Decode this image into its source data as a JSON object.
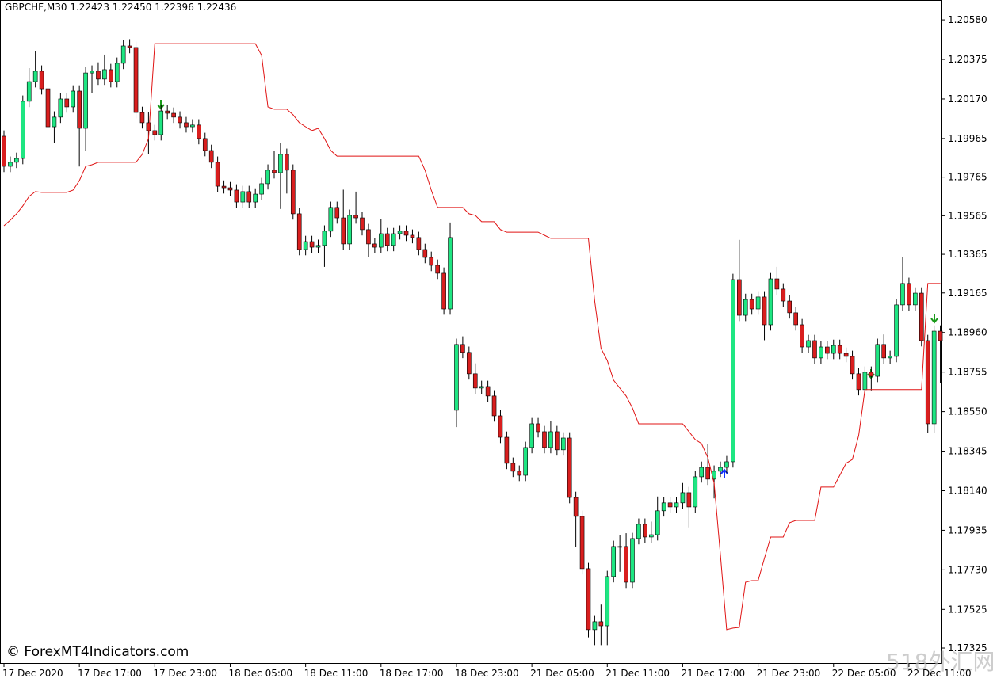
{
  "chart_data": {
    "type": "candlestick",
    "title": "GBPCHF,M30  1.22423 1.22450 1.22396 1.22436",
    "watermark": "© ForexMT4Indicators.com",
    "corner_watermark": "518外汇网",
    "up_color": "#1ee682",
    "down_color": "#d91e1e",
    "categories": [
      "17 Dec 2020",
      null,
      null,
      null,
      null,
      null,
      null,
      null,
      null,
      null,
      null,
      null,
      "17 Dec 17:00",
      null,
      null,
      null,
      null,
      null,
      null,
      null,
      null,
      null,
      null,
      null,
      "17 Dec 23:00",
      null,
      null,
      null,
      null,
      null,
      null,
      null,
      null,
      null,
      null,
      null,
      "18 Dec 05:00",
      null,
      null,
      null,
      null,
      null,
      null,
      null,
      null,
      null,
      null,
      null,
      "18 Dec 11:00",
      null,
      null,
      null,
      null,
      null,
      null,
      null,
      null,
      null,
      null,
      null,
      "18 Dec 17:00",
      null,
      null,
      null,
      null,
      null,
      null,
      null,
      null,
      null,
      null,
      null,
      "18 Dec 23:00",
      null,
      null,
      null,
      null,
      null,
      null,
      null,
      null,
      null,
      null,
      null,
      "21 Dec 05:00",
      null,
      null,
      null,
      null,
      null,
      null,
      null,
      null,
      null,
      null,
      null,
      "21 Dec 11:00",
      null,
      null,
      null,
      null,
      null,
      null,
      null,
      null,
      null,
      null,
      null,
      "21 Dec 17:00",
      null,
      null,
      null,
      null,
      null,
      null,
      null,
      null,
      null,
      null,
      null,
      "21 Dec 23:00",
      null,
      null,
      null,
      null,
      null,
      null,
      null,
      null,
      null,
      null,
      null,
      "22 Dec 05:00",
      null,
      null,
      null,
      null,
      null,
      null,
      null,
      null,
      null,
      null,
      null,
      "22 Dec 11:00",
      null,
      null,
      null,
      null,
      null
    ],
    "open": [
      1.19977,
      1.19821,
      1.19842,
      1.19862,
      1.20158,
      1.2026,
      1.20314,
      1.20223,
      1.20026,
      1.20076,
      1.2017,
      1.20129,
      1.20211,
      1.20018,
      1.20305,
      1.20314,
      1.20273,
      1.20322,
      1.2026,
      1.20355,
      1.20445,
      1.20437,
      1.201,
      1.20047,
      1.20006,
      1.19985,
      1.20108,
      1.20096,
      1.20076,
      1.20047,
      1.20026,
      1.20035,
      1.19965,
      1.19903,
      1.19842,
      1.19718,
      1.1971,
      1.19698,
      1.19636,
      1.1969,
      1.19636,
      1.19677,
      1.19731,
      1.19801,
      1.19788,
      1.19883,
      1.19801,
      1.19575,
      1.1939,
      1.19431,
      1.19402,
      1.19411,
      1.19485,
      1.19608,
      1.19554,
      1.19419,
      1.19567,
      1.19554,
      1.19493,
      1.19419,
      1.19402,
      1.19472,
      1.19411,
      1.19472,
      1.19485,
      1.19464,
      1.19452,
      1.1939,
      1.19349,
      1.19308,
      1.19267,
      1.19082,
      1.18557,
      1.18898,
      1.18857,
      1.18746,
      1.18672,
      1.1868,
      1.18631,
      1.18528,
      1.18417,
      1.18282,
      1.18241,
      1.1822,
      1.18364,
      1.18487,
      1.18446,
      1.18364,
      1.18446,
      1.18352,
      1.18413,
      1.18105,
      1.18007,
      1.17736,
      1.1742,
      1.17461,
      1.1744,
      1.17695,
      1.17851,
      1.17851,
      1.17666,
      1.17892,
      1.17966,
      1.179,
      1.17912,
      1.18036,
      1.18077,
      1.18056,
      1.18077,
      1.1813,
      1.18056,
      1.18212,
      1.18261,
      1.182,
      1.18241,
      1.18261,
      1.1829,
      1.19234,
      1.19049,
      1.19131,
      1.19082,
      1.19144,
      1.19,
      1.19238,
      1.19185,
      1.19123,
      1.19062,
      1.19,
      1.18885,
      1.18918,
      1.18828,
      1.18885,
      1.18852,
      1.18893,
      1.18852,
      1.18836,
      1.18746,
      1.18664,
      1.18754,
      1.18733,
      1.18898,
      1.18828,
      1.18836,
      1.19103,
      1.19214,
      1.19103,
      1.19164,
      1.18918,
      1.18487,
      1.18967
    ],
    "high": [
      1.20007,
      1.19872,
      1.19892,
      1.20188,
      1.2033,
      1.2042,
      1.20344,
      1.20253,
      1.20106,
      1.202,
      1.202,
      1.20241,
      1.20241,
      1.20335,
      1.20344,
      1.2036,
      1.204,
      1.20352,
      1.20385,
      1.20475,
      1.2048,
      1.20467,
      1.2013,
      1.201,
      1.20036,
      1.20138,
      1.20138,
      1.20126,
      1.20106,
      1.20077,
      1.20065,
      1.20065,
      1.19995,
      1.19933,
      1.19872,
      1.19748,
      1.1974,
      1.19728,
      1.1972,
      1.1972,
      1.19707,
      1.19761,
      1.19831,
      1.199,
      1.1994,
      1.19913,
      1.19831,
      1.19605,
      1.19461,
      1.19461,
      1.19441,
      1.19515,
      1.19638,
      1.19638,
      1.197,
      1.19597,
      1.1969,
      1.19584,
      1.19523,
      1.1945,
      1.1955,
      1.19502,
      1.19502,
      1.19515,
      1.19515,
      1.19494,
      1.19482,
      1.1942,
      1.19379,
      1.19338,
      1.19297,
      1.1953,
      1.18928,
      1.1894,
      1.18887,
      1.188,
      1.1871,
      1.1871,
      1.18661,
      1.18558,
      1.18447,
      1.18312,
      1.18271,
      1.18394,
      1.18517,
      1.18517,
      1.18476,
      1.185,
      1.18476,
      1.18443,
      1.18443,
      1.18135,
      1.18037,
      1.17766,
      1.17491,
      1.1755,
      1.17725,
      1.17881,
      1.1791,
      1.1792,
      1.17922,
      1.17996,
      1.17996,
      1.1798,
      1.1811,
      1.18107,
      1.18107,
      1.18107,
      1.1818,
      1.1816,
      1.18242,
      1.18291,
      1.1838,
      1.18271,
      1.18291,
      1.1832,
      1.19264,
      1.1944,
      1.19161,
      1.19161,
      1.19174,
      1.19174,
      1.19268,
      1.193,
      1.19215,
      1.19153,
      1.19092,
      1.1903,
      1.18948,
      1.18948,
      1.18915,
      1.18915,
      1.18923,
      1.18923,
      1.18882,
      1.18866,
      1.18776,
      1.18784,
      1.18784,
      1.18928,
      1.1895,
      1.18866,
      1.19133,
      1.1935,
      1.19244,
      1.19194,
      1.19194,
      1.18948,
      1.18997,
      1.18997
    ],
    "low": [
      1.19791,
      1.19791,
      1.19812,
      1.19832,
      1.20128,
      1.2023,
      1.20193,
      1.19996,
      1.1994,
      1.20046,
      1.20099,
      1.20099,
      1.1982,
      1.199,
      1.202,
      1.20243,
      1.20243,
      1.2023,
      1.2023,
      1.20325,
      1.20407,
      1.2007,
      1.20017,
      1.19883,
      1.19955,
      1.19955,
      1.20066,
      1.20046,
      1.20017,
      1.19996,
      1.19996,
      1.19935,
      1.19873,
      1.19812,
      1.19688,
      1.1968,
      1.19668,
      1.19606,
      1.19606,
      1.19606,
      1.19606,
      1.19647,
      1.19701,
      1.19758,
      1.196,
      1.1968,
      1.19545,
      1.1936,
      1.1936,
      1.19372,
      1.19372,
      1.193,
      1.19455,
      1.19524,
      1.19389,
      1.19389,
      1.19524,
      1.19463,
      1.1935,
      1.19372,
      1.19372,
      1.19381,
      1.19381,
      1.19442,
      1.19434,
      1.19422,
      1.1936,
      1.19319,
      1.19278,
      1.19237,
      1.19052,
      1.19052,
      1.1847,
      1.18827,
      1.18716,
      1.18642,
      1.18642,
      1.18601,
      1.18498,
      1.18387,
      1.18252,
      1.18211,
      1.1819,
      1.1819,
      1.18334,
      1.18416,
      1.18334,
      1.18334,
      1.18322,
      1.18322,
      1.18075,
      1.1785,
      1.17706,
      1.1738,
      1.1734,
      1.1734,
      1.1734,
      1.17665,
      1.1772,
      1.17636,
      1.17636,
      1.17862,
      1.1787,
      1.1787,
      1.17882,
      1.18006,
      1.18026,
      1.18026,
      1.18047,
      1.1795,
      1.18026,
      1.18182,
      1.1817,
      1.181,
      1.18211,
      1.18231,
      1.1826,
      1.19019,
      1.19019,
      1.19052,
      1.19052,
      1.1892,
      1.1897,
      1.19155,
      1.19093,
      1.19032,
      1.1897,
      1.18855,
      1.18855,
      1.18798,
      1.18798,
      1.18822,
      1.18822,
      1.18822,
      1.18806,
      1.18716,
      1.18634,
      1.18634,
      1.1866,
      1.18703,
      1.18798,
      1.18798,
      1.18806,
      1.19073,
      1.19073,
      1.19073,
      1.18888,
      1.1844,
      1.1844,
      1.187
    ],
    "close": [
      1.19821,
      1.19842,
      1.19862,
      1.20158,
      1.2026,
      1.20314,
      1.20223,
      1.20026,
      1.20076,
      1.2017,
      1.20129,
      1.20211,
      1.20018,
      1.20305,
      1.20314,
      1.20273,
      1.20322,
      1.2026,
      1.20355,
      1.20445,
      1.20437,
      1.201,
      1.20047,
      1.20006,
      1.19985,
      1.20108,
      1.20096,
      1.20076,
      1.20047,
      1.20026,
      1.20035,
      1.19965,
      1.19903,
      1.19842,
      1.19718,
      1.1971,
      1.19698,
      1.19636,
      1.1969,
      1.19636,
      1.19677,
      1.19731,
      1.19801,
      1.19788,
      1.19883,
      1.19801,
      1.19575,
      1.1939,
      1.19431,
      1.19402,
      1.19411,
      1.19485,
      1.19608,
      1.19554,
      1.19419,
      1.19567,
      1.19554,
      1.19493,
      1.19419,
      1.19402,
      1.19472,
      1.19411,
      1.19472,
      1.19485,
      1.19464,
      1.19452,
      1.1939,
      1.19349,
      1.19308,
      1.19267,
      1.19082,
      1.19452,
      1.18898,
      1.18857,
      1.18746,
      1.18672,
      1.1868,
      1.18631,
      1.18528,
      1.18417,
      1.18282,
      1.18241,
      1.1822,
      1.18364,
      1.18487,
      1.18446,
      1.18364,
      1.18446,
      1.18352,
      1.18413,
      1.18105,
      1.18007,
      1.17736,
      1.1742,
      1.17461,
      1.1744,
      1.17695,
      1.17851,
      1.17851,
      1.17666,
      1.17892,
      1.17966,
      1.179,
      1.17912,
      1.18036,
      1.18077,
      1.18056,
      1.18077,
      1.1813,
      1.18056,
      1.18212,
      1.18261,
      1.182,
      1.18241,
      1.18261,
      1.1829,
      1.19234,
      1.19049,
      1.19131,
      1.19082,
      1.19144,
      1.19,
      1.19238,
      1.19185,
      1.19123,
      1.19062,
      1.19,
      1.18885,
      1.18918,
      1.18828,
      1.18885,
      1.18852,
      1.18893,
      1.18852,
      1.18836,
      1.18746,
      1.18664,
      1.18754,
      1.18733,
      1.18898,
      1.18828,
      1.18836,
      1.19103,
      1.19214,
      1.19103,
      1.19164,
      1.18918,
      1.18487,
      1.18967,
      1.18918
    ],
    "line": {
      "color": "#e01414",
      "values": [
        1.19513,
        1.19542,
        1.19575,
        1.19616,
        1.19665,
        1.1969,
        1.19686,
        1.19686,
        1.19686,
        1.19686,
        1.19686,
        1.19698,
        1.19747,
        1.19821,
        1.19829,
        1.19842,
        1.19842,
        1.19842,
        1.19842,
        1.19842,
        1.19842,
        1.19842,
        1.19883,
        1.19965,
        1.20457,
        1.20457,
        1.20457,
        1.20457,
        1.20457,
        1.20457,
        1.20457,
        1.20457,
        1.20457,
        1.20457,
        1.20457,
        1.20457,
        1.20457,
        1.20457,
        1.20457,
        1.20457,
        1.20457,
        1.20396,
        1.20129,
        1.20117,
        1.20117,
        1.20117,
        1.20088,
        1.20047,
        1.20026,
        1.20006,
        1.20018,
        1.19965,
        1.19903,
        1.19874,
        1.19874,
        1.19874,
        1.19874,
        1.19874,
        1.19874,
        1.19874,
        1.19874,
        1.19874,
        1.19874,
        1.19874,
        1.19874,
        1.19874,
        1.19874,
        1.19801,
        1.19698,
        1.19608,
        1.19608,
        1.19608,
        1.19608,
        1.19608,
        1.19575,
        1.19567,
        1.19534,
        1.19534,
        1.19534,
        1.19493,
        1.1948,
        1.1948,
        1.1948,
        1.1948,
        1.1948,
        1.1948,
        1.19464,
        1.19448,
        1.19448,
        1.19448,
        1.19448,
        1.19448,
        1.19448,
        1.19448,
        1.19123,
        1.18877,
        1.18815,
        1.18713,
        1.18672,
        1.18631,
        1.18569,
        1.18487,
        1.18487,
        1.18487,
        1.18487,
        1.18487,
        1.18487,
        1.18487,
        1.18487,
        1.18446,
        1.18405,
        1.18384,
        1.18311,
        1.18179,
        1.1781,
        1.1742,
        1.17428,
        1.17432,
        1.17666,
        1.17674,
        1.17674,
        1.17789,
        1.179,
        1.179,
        1.179,
        1.17974,
        1.17986,
        1.17986,
        1.17986,
        1.17986,
        1.18159,
        1.18159,
        1.18159,
        1.1822,
        1.18282,
        1.18302,
        1.18426,
        1.18664,
        1.18664,
        1.18664,
        1.18664,
        1.18664,
        1.18664,
        1.18664,
        1.18664,
        1.18664,
        1.18664,
        1.19214,
        1.19214,
        1.19214
      ]
    },
    "ylim": [
      1.17243,
      1.20683
    ],
    "yticks": [
      {
        "value": 1.2058,
        "label": "1.20580"
      },
      1.20375,
      {
        "value": 1.2017,
        "label": "1.20170"
      },
      1.19965,
      1.19765,
      1.19565,
      1.19365,
      1.19165,
      {
        "value": 1.1896,
        "label": "1.18960"
      },
      1.18755,
      {
        "value": 1.1855,
        "label": "1.18550"
      },
      1.18345,
      {
        "value": 1.1814,
        "label": "1.18140"
      },
      1.17935,
      {
        "value": 1.1773,
        "label": "1.17730"
      },
      1.17525,
      1.17325
    ]
  }
}
